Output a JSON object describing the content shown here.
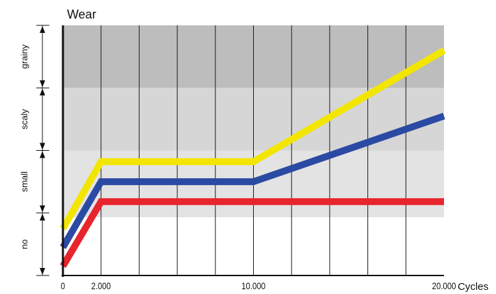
{
  "chart_data": {
    "type": "line",
    "title": "Wear",
    "xlabel": "Cycles",
    "ylabel": "",
    "xlim": [
      0,
      20000
    ],
    "x_ticks": [
      {
        "value": 0,
        "label": "0"
      },
      {
        "value": 2000,
        "label": "2.000"
      },
      {
        "value": 10000,
        "label": "10.000"
      },
      {
        "value": 20000,
        "label": "20.000"
      }
    ],
    "x_grid": [
      2000,
      4000,
      6000,
      8000,
      10000,
      12000,
      14000,
      16000,
      18000
    ],
    "ylim": [
      0,
      4
    ],
    "y_categories": [
      {
        "label": "no",
        "from": 0,
        "to": 1
      },
      {
        "label": "small",
        "from": 1,
        "to": 2
      },
      {
        "label": "scaly",
        "from": 2,
        "to": 3
      },
      {
        "label": "grainy",
        "from": 3,
        "to": 4
      }
    ],
    "bands": [
      {
        "from": 0.93,
        "to": 2.0,
        "color": "#e3e3e3"
      },
      {
        "from": 2.0,
        "to": 3.0,
        "color": "#d6d6d6"
      },
      {
        "from": 3.0,
        "to": 4.0,
        "color": "#bdbdbd"
      }
    ],
    "series": [
      {
        "color": "#f2e600",
        "x": [
          0,
          2000,
          10000,
          20000
        ],
        "y": [
          0.75,
          1.82,
          1.82,
          3.6
        ]
      },
      {
        "color": "#2b4aa3",
        "x": [
          0,
          2000,
          10000,
          20000
        ],
        "y": [
          0.45,
          1.5,
          1.5,
          2.55
        ]
      },
      {
        "color": "#e8242c",
        "x": [
          0,
          2000,
          20000
        ],
        "y": [
          0.15,
          1.18,
          1.18
        ]
      }
    ],
    "grid": true
  }
}
